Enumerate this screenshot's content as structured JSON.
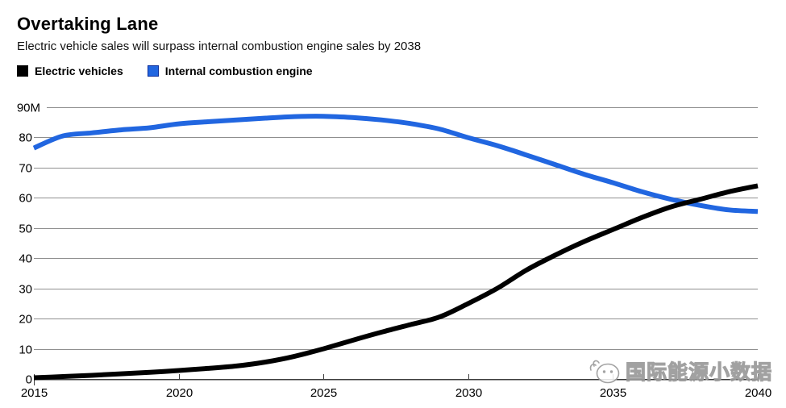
{
  "chart_data": {
    "type": "line",
    "title": "Overtaking Lane",
    "subtitle": "Electric vehicle sales will surpass internal combustion engine sales by 2038",
    "xlabel": "",
    "ylabel": "",
    "x": [
      2015,
      2016,
      2017,
      2018,
      2019,
      2020,
      2021,
      2022,
      2023,
      2024,
      2025,
      2026,
      2027,
      2028,
      2029,
      2030,
      2031,
      2032,
      2033,
      2034,
      2035,
      2036,
      2037,
      2038,
      2039,
      2040
    ],
    "series": [
      {
        "name": "Electric vehicles",
        "color": "#000000",
        "swatch_border": "#000000",
        "values": [
          0.4,
          0.8,
          1.2,
          1.7,
          2.2,
          2.8,
          3.5,
          4.3,
          5.6,
          7.5,
          10,
          12.8,
          15.5,
          18,
          20.5,
          25,
          30,
          36,
          41,
          45.5,
          49.5,
          53.5,
          57,
          59.5,
          62,
          64
        ]
      },
      {
        "name": "Internal combustion engine",
        "color": "#2166e0",
        "swatch_border": "#0b2d9a",
        "values": [
          76.5,
          80.5,
          81.5,
          82.5,
          83.2,
          84.5,
          85.2,
          85.8,
          86.4,
          86.9,
          87,
          86.6,
          85.8,
          84.6,
          82.8,
          79.9,
          77.3,
          74.2,
          71,
          67.8,
          65,
          62,
          59.5,
          57.5,
          56,
          55.5
        ]
      }
    ],
    "xlim": [
      2015,
      2040
    ],
    "ylim": [
      0,
      90
    ],
    "x_ticks": [
      {
        "value": 2015,
        "label": "2015"
      },
      {
        "value": 2020,
        "label": "2020"
      },
      {
        "value": 2025,
        "label": "2025"
      },
      {
        "value": 2030,
        "label": "2030"
      },
      {
        "value": 2035,
        "label": "2035"
      },
      {
        "value": 2040,
        "label": "2040"
      }
    ],
    "y_ticks": [
      {
        "value": 0,
        "label": "0"
      },
      {
        "value": 10,
        "label": "10"
      },
      {
        "value": 20,
        "label": "20"
      },
      {
        "value": 30,
        "label": "30"
      },
      {
        "value": 40,
        "label": "40"
      },
      {
        "value": 50,
        "label": "50"
      },
      {
        "value": 60,
        "label": "60"
      },
      {
        "value": 70,
        "label": "70"
      },
      {
        "value": 80,
        "label": "80"
      },
      {
        "value": 90,
        "label": "90M"
      }
    ],
    "grid": "horizontal",
    "legend_position": "top-left",
    "gridline_color": "#8f8f8f",
    "axis_color": "#3d3d3d",
    "crossover_year": 2038
  },
  "watermark": {
    "text": "国际能源小数据"
  }
}
